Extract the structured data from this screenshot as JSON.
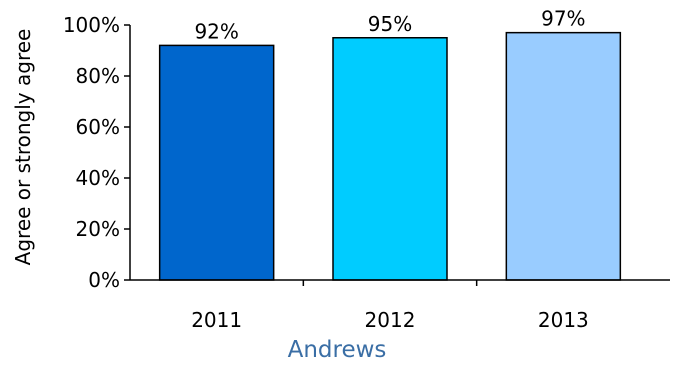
{
  "chart_data": {
    "type": "bar",
    "title": "",
    "xlabel": "Andrews",
    "ylabel": "Agree or strongly agree",
    "categories": [
      "2011",
      "2012",
      "2013"
    ],
    "values": [
      92,
      95,
      97
    ],
    "value_labels": [
      "92%",
      "95%",
      "97%"
    ],
    "ylim": [
      0,
      100
    ],
    "yticks": [
      0,
      20,
      40,
      60,
      80,
      100
    ],
    "ytick_labels": [
      "0%",
      "20%",
      "40%",
      "60%",
      "80%",
      "100%"
    ],
    "bar_colors": [
      "#0066cc",
      "#00ccff",
      "#99ccff"
    ],
    "xlabel_color": "#3a6ea5",
    "grid": false,
    "legend": "none"
  }
}
